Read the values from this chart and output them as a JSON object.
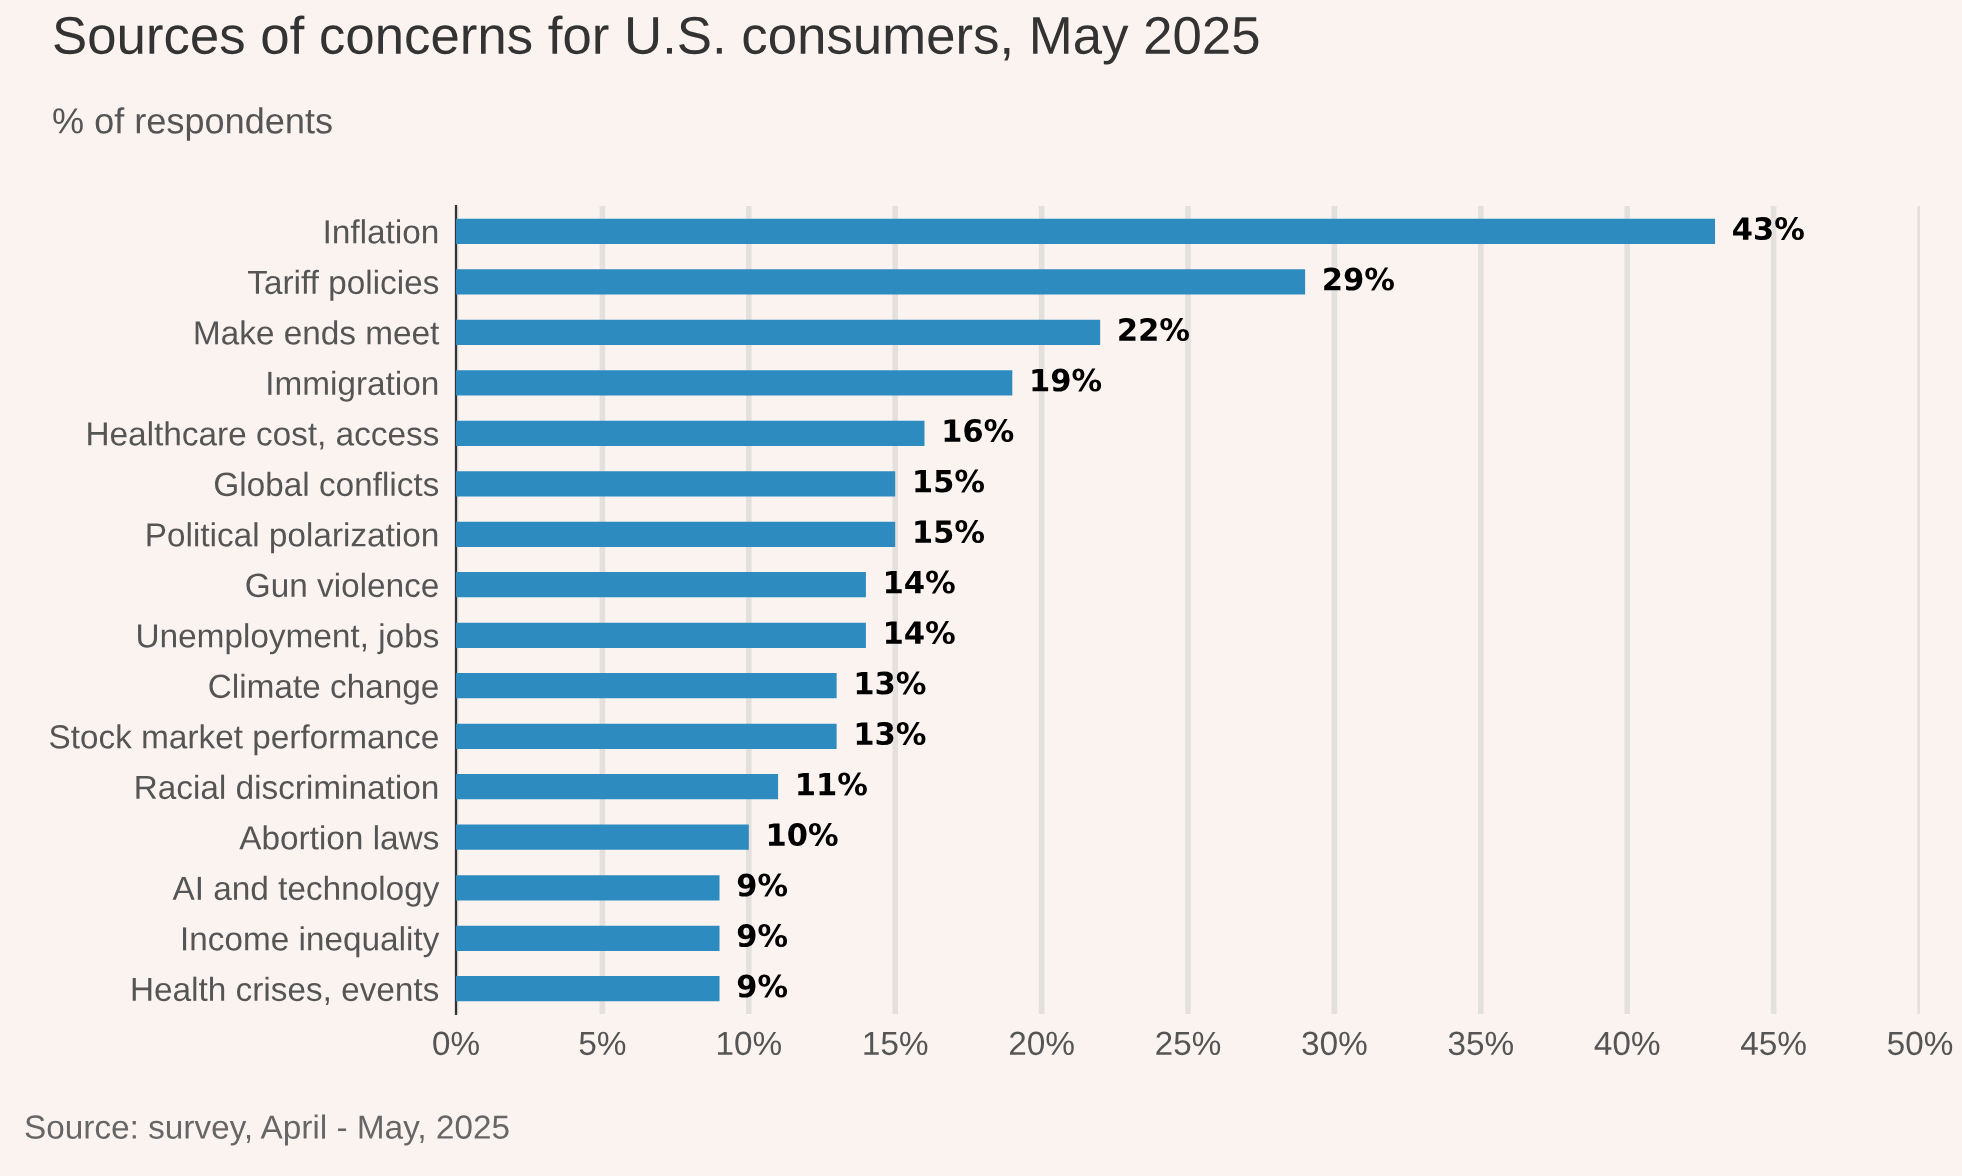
{
  "chart_data": {
    "type": "bar",
    "orientation": "horizontal",
    "title": "Sources of concerns for U.S. consumers, May 2025",
    "subtitle": "% of respondents",
    "annotations": [
      "Source: survey, April - May, 2025"
    ],
    "categories": [
      "Inflation",
      "Tariff policies",
      "Make ends meet",
      "Immigration",
      "Healthcare cost, access",
      "Global conflicts",
      "Political polarization",
      "Gun violence",
      "Unemployment, jobs",
      "Climate change",
      "Stock market performance",
      "Racial discrimination",
      "Abortion laws",
      "AI and technology",
      "Income inequality",
      "Health crises, events"
    ],
    "values": [
      43,
      29,
      22,
      19,
      16,
      15,
      15,
      14,
      14,
      13,
      13,
      11,
      10,
      9,
      9,
      9
    ],
    "value_labels": [
      "43%",
      "29%",
      "22%",
      "19%",
      "16%",
      "15%",
      "15%",
      "14%",
      "14%",
      "13%",
      "13%",
      "11%",
      "10%",
      "9%",
      "9%",
      "9%"
    ],
    "color": "#2e8bc0",
    "xlim": [
      0,
      50
    ],
    "xticks": [
      {
        "value": 0,
        "label": "0%"
      },
      {
        "value": 5,
        "label": "5%"
      },
      {
        "value": 10,
        "label": "10%"
      },
      {
        "value": 15,
        "label": "15%"
      },
      {
        "value": 20,
        "label": "20%"
      },
      {
        "value": 25,
        "label": "25%"
      },
      {
        "value": 30,
        "label": "30%"
      },
      {
        "value": 35,
        "label": "35%"
      },
      {
        "value": 40,
        "label": "40%"
      },
      {
        "value": 45,
        "label": "45%"
      },
      {
        "value": 50,
        "label": "50%"
      }
    ],
    "grid": "x",
    "legend": false
  }
}
